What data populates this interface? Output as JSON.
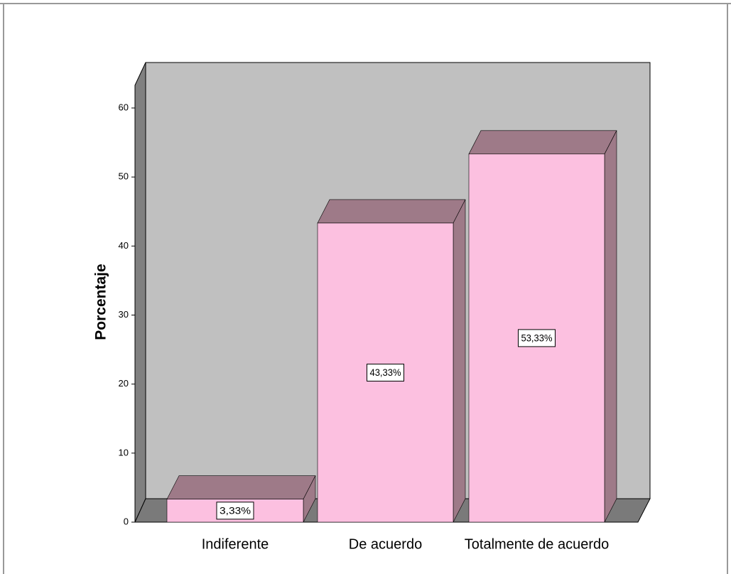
{
  "chart_data": {
    "type": "bar",
    "y_label": "Porcentaje",
    "categories": [
      "Indiferente",
      "De acuerdo",
      "Totalmente de acuerdo"
    ],
    "values": [
      3.33,
      43.33,
      53.33
    ],
    "value_labels": [
      "3,33%",
      "43,33%",
      "53,33%"
    ],
    "color": "#fcc0e0",
    "shade_color": "#9e7a88",
    "ylim": [
      0,
      60
    ],
    "yticks": [
      0,
      10,
      20,
      30,
      40,
      50,
      60
    ],
    "grid": false
  }
}
